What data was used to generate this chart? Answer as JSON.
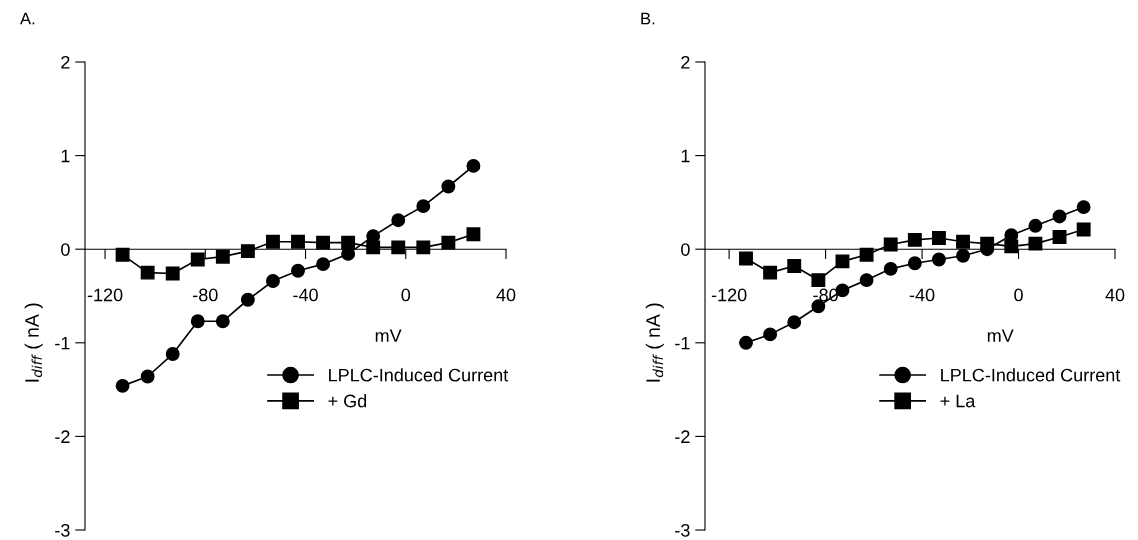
{
  "chart_data": [
    {
      "type": "line",
      "title": "A.",
      "xlabel": "mV",
      "ylabel": "I$_{diff}$ ( nA )",
      "xlim": [
        -128,
        40
      ],
      "xticks": [
        -120,
        -80,
        -40,
        0,
        40
      ],
      "ylim": [
        -3,
        2
      ],
      "yticks": [
        -3,
        -2,
        -1,
        0,
        1,
        2
      ],
      "grid": false,
      "legend": "bottom right",
      "x": [
        -113,
        -103,
        -93,
        -83,
        -73,
        -63,
        -53,
        -43,
        -33,
        -23,
        -13,
        -3,
        7,
        17,
        27
      ],
      "series": [
        {
          "name": "LPLC-Induced Current",
          "color": "#000000",
          "marker": "circle",
          "values": [
            -1.46,
            -1.36,
            -1.12,
            -0.77,
            -0.77,
            -0.54,
            -0.34,
            -0.23,
            -0.16,
            -0.05,
            0.14,
            0.31,
            0.46,
            0.67,
            0.89
          ]
        },
        {
          "name": "+ Gd",
          "color": "#000000",
          "marker": "square",
          "values": [
            -0.06,
            -0.25,
            -0.26,
            -0.11,
            -0.08,
            -0.02,
            0.08,
            0.08,
            0.07,
            0.07,
            0.02,
            0.02,
            0.02,
            0.07,
            0.16
          ]
        }
      ]
    },
    {
      "type": "line",
      "title": "B.",
      "xlabel": "mV",
      "ylabel": "I$_{diff}$ ( nA )",
      "xlim": [
        -130,
        40
      ],
      "xticks": [
        -120,
        -80,
        -40,
        0,
        40
      ],
      "ylim": [
        -3,
        2
      ],
      "yticks": [
        -3,
        -2,
        -1,
        0,
        1,
        2
      ],
      "grid": false,
      "legend": "bottom right",
      "x": [
        -113,
        -103,
        -93,
        -83,
        -73,
        -63,
        -53,
        -43,
        -33,
        -23,
        -13,
        -3,
        7,
        17,
        27
      ],
      "series": [
        {
          "name": "LPLC-Induced Current",
          "color": "#000000",
          "marker": "circle",
          "values": [
            -1.0,
            -0.91,
            -0.78,
            -0.61,
            -0.44,
            -0.33,
            -0.21,
            -0.15,
            -0.11,
            -0.07,
            0.0,
            0.15,
            0.25,
            0.35,
            0.45
          ]
        },
        {
          "name": "+ La",
          "color": "#000000",
          "marker": "square",
          "values": [
            -0.1,
            -0.25,
            -0.18,
            -0.33,
            -0.13,
            -0.06,
            0.05,
            0.1,
            0.12,
            0.08,
            0.06,
            0.03,
            0.06,
            0.13,
            0.21
          ]
        }
      ]
    }
  ]
}
